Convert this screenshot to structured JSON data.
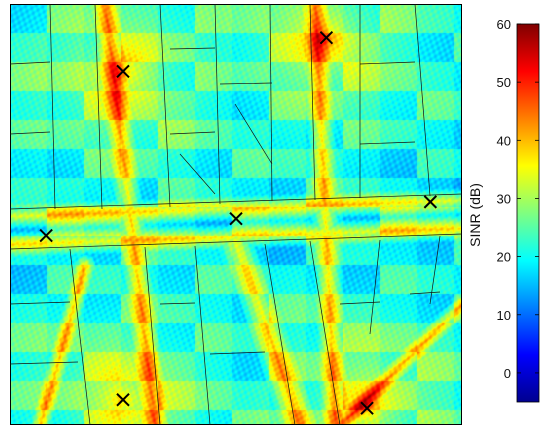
{
  "chart_data": {
    "type": "heatmap",
    "title": "",
    "xlabel": "",
    "ylabel": "",
    "colorbar": {
      "label": "SINR (dB)",
      "range": [
        -5,
        60
      ],
      "ticks": [
        0,
        10,
        20,
        30,
        40,
        50,
        60
      ],
      "colormap": "jet"
    },
    "transmitters": [
      {
        "x": 0.25,
        "y": 0.84,
        "peak_sinr": 55
      },
      {
        "x": 0.7,
        "y": 0.92,
        "peak_sinr": 55
      },
      {
        "x": 0.08,
        "y": 0.45,
        "peak_sinr": 35
      },
      {
        "x": 0.5,
        "y": 0.49,
        "peak_sinr": 35
      },
      {
        "x": 0.93,
        "y": 0.53,
        "peak_sinr": 35
      },
      {
        "x": 0.25,
        "y": 0.06,
        "peak_sinr": 55
      },
      {
        "x": 0.79,
        "y": 0.04,
        "peak_sinr": 55
      }
    ],
    "marker": "x"
  }
}
